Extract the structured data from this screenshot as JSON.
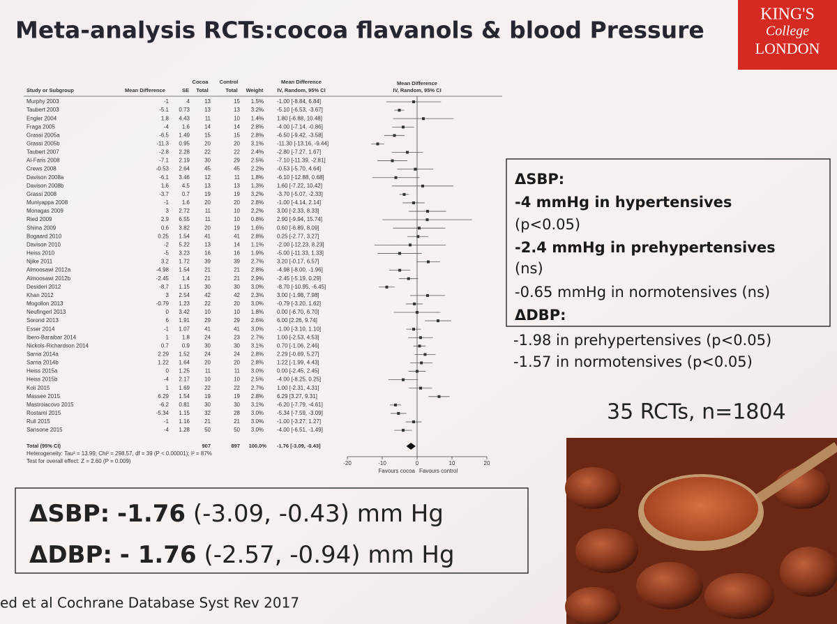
{
  "title": "Meta-analysis RCTs:cocoa flavanols & blood Pressure",
  "logo": {
    "line1": "KING'S",
    "line2": "College",
    "line3": "LONDON"
  },
  "forest": {
    "headers": {
      "study": "Study or Subgroup",
      "md": "Mean Difference",
      "se": "SE",
      "cocoa": "Cocoa",
      "cocoa_total": "Total",
      "control": "Control",
      "control_total": "Total",
      "weight": "Weight",
      "ci": "Mean Difference",
      "ci_method": "IV, Random, 95% CI",
      "plot": "Mean Difference",
      "plot_method": "IV, Random, 95% CI"
    },
    "rows": [
      {
        "study": "Murphy 2003",
        "md": -1,
        "se": 4,
        "cocoa": 13,
        "control": 15,
        "weight": "1.5%",
        "ci": "-1.00 [-8.84, 6.84]",
        "lo": -8.84,
        "hi": 6.84
      },
      {
        "study": "Taubert 2003",
        "md": -5.1,
        "se": 0.73,
        "cocoa": 13,
        "control": 13,
        "weight": "3.2%",
        "ci": "-5.10 [-6.53, -3.67]",
        "lo": -6.53,
        "hi": -3.67
      },
      {
        "study": "Engler 2004",
        "md": 1.8,
        "se": 4.43,
        "cocoa": 11,
        "control": 10,
        "weight": "1.4%",
        "ci": "1.80 [-6.88, 10.48]",
        "lo": -6.88,
        "hi": 10.48
      },
      {
        "study": "Fraga 2005",
        "md": -4,
        "se": 1.6,
        "cocoa": 14,
        "control": 14,
        "weight": "2.8%",
        "ci": "-4.00 [-7.14, -0.86]",
        "lo": -7.14,
        "hi": -0.86
      },
      {
        "study": "Grassi 2005a",
        "md": -6.5,
        "se": 1.49,
        "cocoa": 15,
        "control": 15,
        "weight": "2.8%",
        "ci": "-6.50 [-9.42, -3.58]",
        "lo": -9.42,
        "hi": -3.58
      },
      {
        "study": "Grassi 2005b",
        "md": -11.3,
        "se": 0.95,
        "cocoa": 20,
        "control": 20,
        "weight": "3.1%",
        "ci": "-11.30 [-13.16, -9.44]",
        "lo": -13.16,
        "hi": -9.44
      },
      {
        "study": "Taubert 2007",
        "md": -2.8,
        "se": 2.28,
        "cocoa": 22,
        "control": 22,
        "weight": "2.4%",
        "ci": "-2.80 [-7.27, 1.67]",
        "lo": -7.27,
        "hi": 1.67
      },
      {
        "study": "Al-Faris 2008",
        "md": -7.1,
        "se": 2.19,
        "cocoa": 30,
        "control": 29,
        "weight": "2.5%",
        "ci": "-7.10 [-11.39, -2.81]",
        "lo": -11.39,
        "hi": -2.81
      },
      {
        "study": "Crews 2008",
        "md": -0.53,
        "se": 2.64,
        "cocoa": 45,
        "control": 45,
        "weight": "2.2%",
        "ci": "-0.53 [-5.70, 4.64]",
        "lo": -5.7,
        "hi": 4.64
      },
      {
        "study": "Davison 2008a",
        "md": -6.1,
        "se": 3.46,
        "cocoa": 12,
        "control": 11,
        "weight": "1.8%",
        "ci": "-6.10 [-12.88, 0.68]",
        "lo": -12.88,
        "hi": 0.68
      },
      {
        "study": "Davison 2008b",
        "md": 1.6,
        "se": 4.5,
        "cocoa": 13,
        "control": 13,
        "weight": "1.3%",
        "ci": "1.60 [-7.22, 10.42]",
        "lo": -7.22,
        "hi": 10.42
      },
      {
        "study": "Grassi 2008",
        "md": -3.7,
        "se": 0.7,
        "cocoa": 19,
        "control": 19,
        "weight": "3.2%",
        "ci": "-3.70 [-5.07, -2.33]",
        "lo": -5.07,
        "hi": -2.33
      },
      {
        "study": "Muniyappa 2008",
        "md": -1,
        "se": 1.6,
        "cocoa": 20,
        "control": 20,
        "weight": "2.8%",
        "ci": "-1.00 [-4.14, 2.14]",
        "lo": -4.14,
        "hi": 2.14
      },
      {
        "study": "Monagas 2009",
        "md": 3,
        "se": 2.72,
        "cocoa": 11,
        "control": 10,
        "weight": "2.2%",
        "ci": "3.00 [-2.33, 8.33]",
        "lo": -2.33,
        "hi": 8.33
      },
      {
        "study": "Ried 2009",
        "md": 2.9,
        "se": 6.55,
        "cocoa": 11,
        "control": 10,
        "weight": "0.8%",
        "ci": "2.90 [-9.94, 15.74]",
        "lo": -9.94,
        "hi": 15.74
      },
      {
        "study": "Shiina 2009",
        "md": 0.6,
        "se": 3.82,
        "cocoa": 20,
        "control": 19,
        "weight": "1.6%",
        "ci": "0.60 [-6.89, 8.09]",
        "lo": -6.89,
        "hi": 8.09
      },
      {
        "study": "Bogaard 2010",
        "md": 0.25,
        "se": 1.54,
        "cocoa": 41,
        "control": 41,
        "weight": "2.8%",
        "ci": "0.25 [-2.77, 3.27]",
        "lo": -2.77,
        "hi": 3.27
      },
      {
        "study": "Davison 2010",
        "md": -2,
        "se": 5.22,
        "cocoa": 13,
        "control": 14,
        "weight": "1.1%",
        "ci": "-2.00 [-12.23, 8.23]",
        "lo": -12.23,
        "hi": 8.23
      },
      {
        "study": "Heiss 2010",
        "md": -5,
        "se": 3.23,
        "cocoa": 16,
        "control": 16,
        "weight": "1.9%",
        "ci": "-5.00 [-11.33, 1.33]",
        "lo": -11.33,
        "hi": 1.33
      },
      {
        "study": "Njike 2011",
        "md": 3.2,
        "se": 1.72,
        "cocoa": 39,
        "control": 39,
        "weight": "2.7%",
        "ci": "3.20 [-0.17, 6.57]",
        "lo": -0.17,
        "hi": 6.57
      },
      {
        "study": "Almoosawi 2012a",
        "md": -4.98,
        "se": 1.54,
        "cocoa": 21,
        "control": 21,
        "weight": "2.8%",
        "ci": "-4.98 [-8.00, -1.96]",
        "lo": -8,
        "hi": -1.96
      },
      {
        "study": "Almoosawi 2012b",
        "md": -2.45,
        "se": 1.4,
        "cocoa": 21,
        "control": 21,
        "weight": "2.9%",
        "ci": "-2.45 [-5.19, 0.29]",
        "lo": -5.19,
        "hi": 0.29
      },
      {
        "study": "Desideri 2012",
        "md": -8.7,
        "se": 1.15,
        "cocoa": 30,
        "control": 30,
        "weight": "3.0%",
        "ci": "-8.70 [-10.95, -6.45]",
        "lo": -10.95,
        "hi": -6.45
      },
      {
        "study": "Khan 2012",
        "md": 3,
        "se": 2.54,
        "cocoa": 42,
        "control": 42,
        "weight": "2.3%",
        "ci": "3.00 [-1.98, 7.98]",
        "lo": -1.98,
        "hi": 7.98
      },
      {
        "study": "Mogollon 2013",
        "md": -0.79,
        "se": 1.23,
        "cocoa": 22,
        "control": 20,
        "weight": "3.0%",
        "ci": "-0.79 [-3.20, 1.62]",
        "lo": -3.2,
        "hi": 1.62
      },
      {
        "study": "Neufingerl 2013",
        "md": 0,
        "se": 3.42,
        "cocoa": 10,
        "control": 10,
        "weight": "1.8%",
        "ci": "0.00 [-6.70, 6.70]",
        "lo": -6.7,
        "hi": 6.7
      },
      {
        "study": "Sorond 2013",
        "md": 6,
        "se": 1.91,
        "cocoa": 29,
        "control": 29,
        "weight": "2.6%",
        "ci": "6.00 [2.26, 9.74]",
        "lo": 2.26,
        "hi": 9.74
      },
      {
        "study": "Esser 2014",
        "md": -1,
        "se": 1.07,
        "cocoa": 41,
        "control": 41,
        "weight": "3.0%",
        "ci": "-1.00 [-3.10, 1.10]",
        "lo": -3.1,
        "hi": 1.1
      },
      {
        "study": "Ibero-Baraibar 2014",
        "md": 1,
        "se": 1.8,
        "cocoa": 24,
        "control": 23,
        "weight": "2.7%",
        "ci": "1.00 [-2.53, 4.53]",
        "lo": -2.53,
        "hi": 4.53
      },
      {
        "study": "Nickols-Richardson 2014",
        "md": 0.7,
        "se": 0.9,
        "cocoa": 30,
        "control": 30,
        "weight": "3.1%",
        "ci": "0.70 [-1.06, 2.46]",
        "lo": -1.06,
        "hi": 2.46
      },
      {
        "study": "Sarria 2014a",
        "md": 2.29,
        "se": 1.52,
        "cocoa": 24,
        "control": 24,
        "weight": "2.8%",
        "ci": "2.29 [-0.69, 5.27]",
        "lo": -0.69,
        "hi": 5.27
      },
      {
        "study": "Sarria 2014b",
        "md": 1.22,
        "se": 1.64,
        "cocoa": 20,
        "control": 20,
        "weight": "2.8%",
        "ci": "1.22 [-1.99, 4.43]",
        "lo": -1.99,
        "hi": 4.43
      },
      {
        "study": "Heiss 2015a",
        "md": 0,
        "se": 1.25,
        "cocoa": 11,
        "control": 11,
        "weight": "3.0%",
        "ci": "0.00 [-2.45, 2.45]",
        "lo": -2.45,
        "hi": 2.45
      },
      {
        "study": "Heiss 2015b",
        "md": -4,
        "se": 2.17,
        "cocoa": 10,
        "control": 10,
        "weight": "2.5%",
        "ci": "-4.00 [-8.25, 0.25]",
        "lo": -8.25,
        "hi": 0.25
      },
      {
        "study": "Koli 2015",
        "md": 1,
        "se": 1.69,
        "cocoa": 22,
        "control": 22,
        "weight": "2.7%",
        "ci": "1.00 [-2.31, 4.31]",
        "lo": -2.31,
        "hi": 4.31
      },
      {
        "study": "Massee 2015",
        "md": 6.29,
        "se": 1.54,
        "cocoa": 19,
        "control": 19,
        "weight": "2.8%",
        "ci": "6.29 [3.27, 9.31]",
        "lo": 3.27,
        "hi": 9.31
      },
      {
        "study": "Mastroiacovo 2015",
        "md": -6.2,
        "se": 0.81,
        "cocoa": 30,
        "control": 30,
        "weight": "3.1%",
        "ci": "-6.20 [-7.79, -4.61]",
        "lo": -7.79,
        "hi": -4.61
      },
      {
        "study": "Rostami 2015",
        "md": -5.34,
        "se": 1.15,
        "cocoa": 32,
        "control": 28,
        "weight": "3.0%",
        "ci": "-5.34 [-7.59, -3.09]",
        "lo": -7.59,
        "hi": -3.09
      },
      {
        "study": "Rull 2015",
        "md": -1,
        "se": 1.16,
        "cocoa": 21,
        "control": 21,
        "weight": "3.0%",
        "ci": "-1.00 [-3.27, 1.27]",
        "lo": -3.27,
        "hi": 1.27
      },
      {
        "study": "Sansone 2015",
        "md": -4,
        "se": 1.28,
        "cocoa": 50,
        "control": 50,
        "weight": "3.0%",
        "ci": "-4.00 [-6.51, -1.49]",
        "lo": -6.51,
        "hi": -1.49
      }
    ],
    "total": {
      "label": "Total (95% CI)",
      "cocoa": 907,
      "control": 897,
      "weight": "100.0%",
      "ci": "-1.76 [-3.09, -0.43]",
      "estimate": -1.76,
      "lo": -3.09,
      "hi": -0.43
    },
    "heterogeneity": "Heterogeneity: Tau² = 13.99; Chi² = 298.57, df = 39 (P < 0.00001); I² = 87%",
    "overall_test": "Test for overall effect: Z = 2.60 (P = 0.009)",
    "axis": {
      "xlim": [
        -20,
        20
      ],
      "xticks": [
        -20,
        -10,
        0,
        10,
        20
      ],
      "left_label": "Favours cocoa",
      "right_label": "Favours control"
    }
  },
  "sbp_box": {
    "heading": "ΔSBP:",
    "lines": [
      "-4 mmHg in hypertensives",
      "(p<0.05)",
      "-2.4 mmHg in prehypertensives",
      "(ns)",
      "-0.65 mmHg in normotensives (ns)"
    ],
    "dbp_heading": "ΔDBP:"
  },
  "dbp_lines": [
    "-1.98 in prehypertensives (p<0.05)",
    "-1.57 in normotensives (p<0.05)"
  ],
  "study_count": "35 RCTs, n=1804",
  "summary": [
    {
      "label": "ΔSBP:",
      "estimate": "-1.76",
      "rest": "(-3.09, -0.43) mm Hg"
    },
    {
      "label": "ΔDBP:",
      "estimate": "- 1.76",
      "rest": "(-2.57, -0.94) mm Hg"
    }
  ],
  "citation": "ed et al Cochrane Database Syst Rev 2017"
}
